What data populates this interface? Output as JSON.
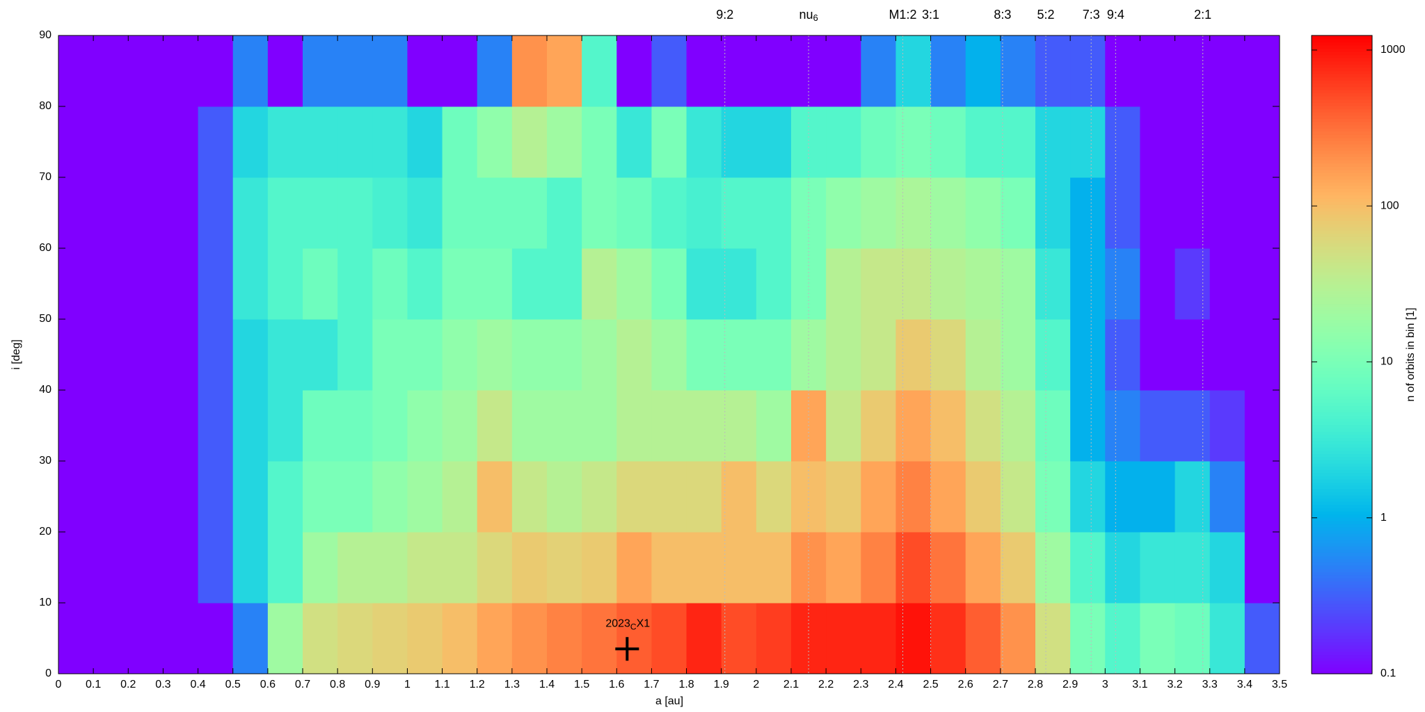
{
  "chart_data": {
    "type": "heatmap",
    "x_label": "a [au]",
    "y_label": "i [deg]",
    "colorbar_label": "n of orbits in bin [1]",
    "colorbar_log": true,
    "clim": [
      0.1,
      1240
    ],
    "cticks": [
      0.1,
      1,
      10,
      100,
      1000
    ],
    "xlim": [
      0,
      3.5
    ],
    "ylim": [
      0,
      90
    ],
    "xticks": [
      0,
      0.1,
      0.2,
      0.3,
      0.4,
      0.5,
      0.6,
      0.7,
      0.8,
      0.9,
      1,
      1.1,
      1.2,
      1.3,
      1.4,
      1.5,
      1.6,
      1.7,
      1.8,
      1.9,
      2,
      2.1,
      2.2,
      2.3,
      2.4,
      2.5,
      2.6,
      2.7,
      2.8,
      2.9,
      3,
      3.1,
      3.2,
      3.3,
      3.4,
      3.5
    ],
    "yticks": [
      0,
      10,
      20,
      30,
      40,
      50,
      60,
      70,
      80,
      90
    ],
    "x_bins": [
      0,
      0.1,
      0.2,
      0.3,
      0.4,
      0.5,
      0.6,
      0.7,
      0.8,
      0.9,
      1,
      1.1,
      1.2,
      1.3,
      1.4,
      1.5,
      1.6,
      1.7,
      1.8,
      1.9,
      2,
      2.1,
      2.2,
      2.3,
      2.4,
      2.5,
      2.6,
      2.7,
      2.8,
      2.9,
      3,
      3.1,
      3.2,
      3.3,
      3.4,
      3.5
    ],
    "y_bins": [
      0,
      10,
      20,
      30,
      40,
      50,
      60,
      70,
      80,
      90
    ],
    "z": [
      [
        0.1,
        0.1,
        0.1,
        0.1,
        0.1,
        0.5,
        20,
        50,
        60,
        70,
        80,
        100,
        150,
        200,
        250,
        300,
        400,
        500,
        800,
        500,
        600,
        800,
        800,
        800,
        1000,
        700,
        400,
        200,
        50,
        10,
        5,
        10,
        8,
        3,
        0.3
      ],
      [
        0.1,
        0.1,
        0.1,
        0.1,
        0.3,
        2,
        5,
        20,
        30,
        30,
        40,
        40,
        60,
        80,
        70,
        80,
        150,
        100,
        100,
        100,
        100,
        200,
        150,
        250,
        500,
        300,
        150,
        80,
        20,
        5,
        2,
        3,
        3,
        2,
        0.1
      ],
      [
        0.1,
        0.1,
        0.1,
        0.1,
        0.3,
        2,
        5,
        10,
        10,
        15,
        20,
        30,
        100,
        40,
        30,
        40,
        60,
        60,
        60,
        100,
        60,
        100,
        80,
        150,
        250,
        150,
        80,
        40,
        10,
        2,
        1,
        1,
        2,
        0.5,
        0.1
      ],
      [
        0.1,
        0.1,
        0.1,
        0.1,
        0.3,
        2,
        3,
        8,
        8,
        10,
        15,
        20,
        40,
        20,
        20,
        20,
        30,
        30,
        30,
        30,
        20,
        150,
        40,
        80,
        150,
        100,
        50,
        30,
        8,
        1,
        0.5,
        0.3,
        0.3,
        0.2,
        0.1
      ],
      [
        0.1,
        0.1,
        0.1,
        0.1,
        0.3,
        2,
        3,
        3,
        5,
        10,
        10,
        15,
        20,
        15,
        15,
        20,
        30,
        20,
        10,
        10,
        10,
        20,
        30,
        40,
        80,
        60,
        30,
        20,
        5,
        1,
        0.3,
        0.1,
        0.1,
        0.1,
        0.1
      ],
      [
        0.1,
        0.1,
        0.1,
        0.1,
        0.3,
        3,
        5,
        8,
        5,
        8,
        5,
        10,
        10,
        5,
        5,
        30,
        20,
        10,
        3,
        3,
        5,
        10,
        30,
        40,
        40,
        30,
        25,
        20,
        3,
        1,
        0.5,
        0.1,
        0.2,
        0.1,
        0.1
      ],
      [
        0.1,
        0.1,
        0.1,
        0.1,
        0.3,
        3,
        5,
        5,
        5,
        4,
        3,
        8,
        8,
        8,
        5,
        10,
        8,
        5,
        4,
        5,
        5,
        10,
        15,
        20,
        25,
        20,
        15,
        10,
        2,
        1,
        0.3,
        0.1,
        0.1,
        0.1,
        0.1
      ],
      [
        0.1,
        0.1,
        0.1,
        0.1,
        0.3,
        2,
        3,
        3,
        3,
        3,
        2,
        8,
        15,
        30,
        20,
        10,
        3,
        10,
        3,
        2,
        2,
        5,
        5,
        8,
        10,
        8,
        5,
        5,
        2,
        2,
        0.3,
        0.1,
        0.1,
        0.1,
        0.1
      ],
      [
        0.1,
        0.1,
        0.1,
        0.1,
        0.1,
        0.5,
        0.1,
        0.5,
        0.5,
        0.5,
        0.1,
        0.1,
        0.5,
        200,
        150,
        5,
        0.1,
        0.3,
        0.1,
        0.1,
        0.1,
        0.1,
        0.1,
        0.5,
        2,
        0.5,
        1,
        0.5,
        0.3,
        0.3,
        0.1,
        0.1,
        0.1,
        0.1,
        0.1
      ]
    ],
    "resonances": [
      {
        "label": "9:2",
        "a": 1.91
      },
      {
        "label": "nu",
        "sub": "6",
        "a": 2.15
      },
      {
        "label": "M1:2",
        "a": 2.42
      },
      {
        "label": "3:1",
        "a": 2.5
      },
      {
        "label": "8:3",
        "a": 2.706
      },
      {
        "label": "5:2",
        "a": 2.83
      },
      {
        "label": "7:3",
        "a": 2.96
      },
      {
        "label": "9:4",
        "a": 3.03
      },
      {
        "label": "2:1",
        "a": 3.28
      }
    ],
    "marker": {
      "a": 1.63,
      "i": 3.5,
      "label": "2023",
      "label_sub": "C",
      "label_rest": "X1"
    }
  }
}
